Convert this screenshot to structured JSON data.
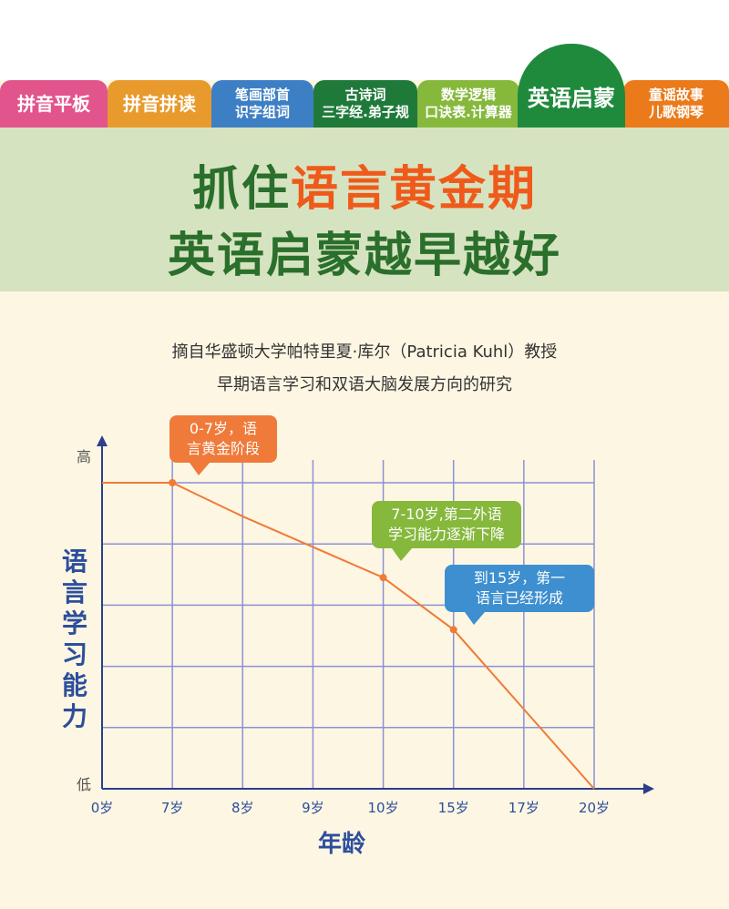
{
  "tabs": [
    {
      "line1": "拼音平板",
      "line2": "",
      "color": "#e2548c"
    },
    {
      "line1": "拼音拼读",
      "line2": "",
      "color": "#e89a2c"
    },
    {
      "line1": "笔画部首",
      "line2": "识字组词",
      "color": "#3d7fc4"
    },
    {
      "line1": "古诗词",
      "line2": "三字经.弟子规",
      "color": "#1f7a3a"
    },
    {
      "line1": "数学逻辑",
      "line2": "口诀表.计算器",
      "color": "#86b83c"
    },
    {
      "line1": "英语启蒙",
      "line2": "",
      "color": "#1f8a3c"
    },
    {
      "line1": "童谣故事",
      "line2": "儿歌钢琴",
      "color": "#ea7a1a"
    }
  ],
  "headline": {
    "line1_prefix": "抓住",
    "line1_highlight": "语言黄金期",
    "line2": "英语启蒙越早越好"
  },
  "source": {
    "line1": "摘自华盛顿大学帕特里夏·库尔（Patricia Kuhl）教授",
    "line2": "早期语言学习和双语大脑发展方向的研究"
  },
  "chart_data": {
    "type": "line",
    "categories": [
      "0岁",
      "7岁",
      "8岁",
      "9岁",
      "10岁",
      "15岁",
      "17岁",
      "20岁"
    ],
    "values": [
      100,
      100,
      89,
      79,
      69,
      52,
      26,
      0
    ],
    "marker_indices": [
      1,
      4,
      5
    ],
    "ylabel": "语言学习能力",
    "xlabel": "年龄",
    "y_high": "高",
    "y_low": "低",
    "ylim": [
      0,
      100
    ],
    "grid": true,
    "line_color": "#f07a36",
    "grid_color": "#8c91d6",
    "axis_color": "#2d3e8c",
    "annotations": [
      {
        "text1": "0-7岁，语",
        "text2": "言黄金阶段",
        "color": "#ef7a3a"
      },
      {
        "text1": "7-10岁,第二外语",
        "text2": "学习能力逐渐下降",
        "color": "#86b83c"
      },
      {
        "text1": "到15岁，第一",
        "text2": "语言已经形成",
        "color": "#3d8fcf"
      }
    ]
  }
}
